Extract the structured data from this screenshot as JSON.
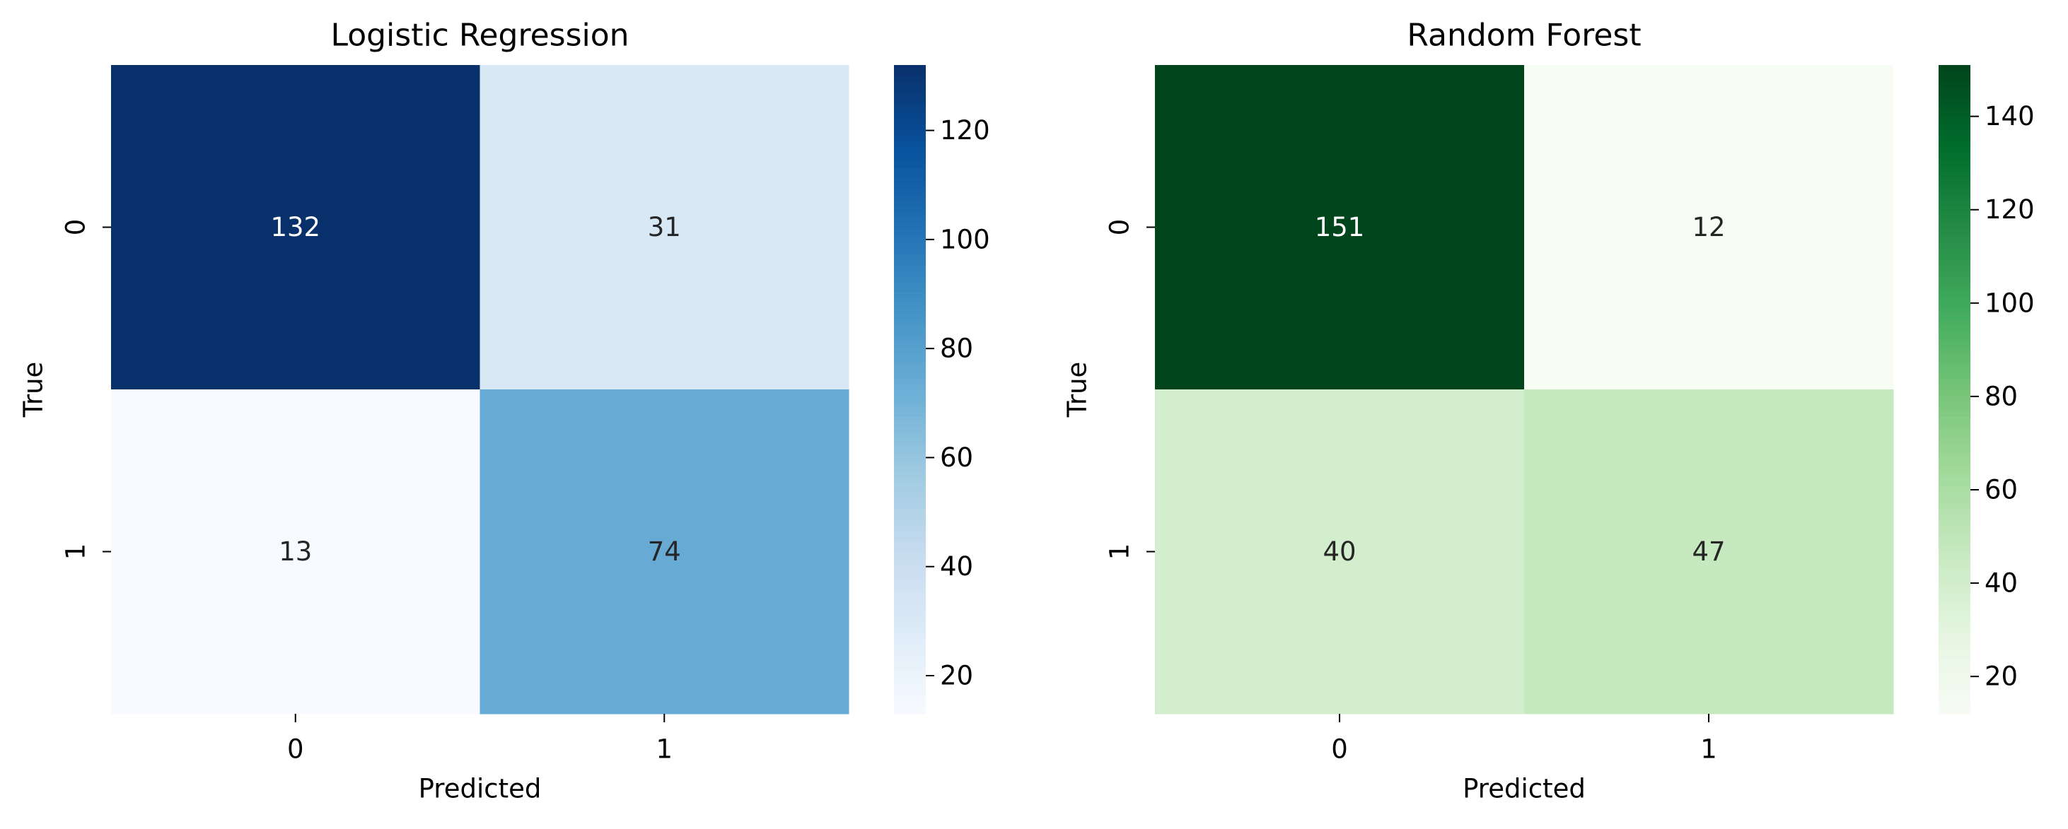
{
  "chart_data": [
    {
      "type": "heatmap",
      "title": "Logistic Regression",
      "xlabel": "Predicted",
      "ylabel": "True",
      "x_categories": [
        "0",
        "1"
      ],
      "y_categories": [
        "0",
        "1"
      ],
      "values": [
        [
          132,
          31
        ],
        [
          13,
          74
        ]
      ],
      "colormap": "Blues",
      "color_range": [
        13,
        132
      ],
      "colorbar_ticks": [
        20,
        40,
        60,
        80,
        100,
        120
      ],
      "colorbar_range": [
        13,
        132
      ]
    },
    {
      "type": "heatmap",
      "title": "Random Forest",
      "xlabel": "Predicted",
      "ylabel": "True",
      "x_categories": [
        "0",
        "1"
      ],
      "y_categories": [
        "0",
        "1"
      ],
      "values": [
        [
          151,
          12
        ],
        [
          40,
          47
        ]
      ],
      "colormap": "Greens",
      "color_range": [
        12,
        151
      ],
      "colorbar_ticks": [
        20,
        40,
        60,
        80,
        100,
        120,
        140
      ],
      "colorbar_range": [
        12,
        151
      ]
    }
  ],
  "colors": {
    "Blues": [
      "#f7fbff",
      "#deebf7",
      "#c6dbef",
      "#9ecae1",
      "#6baed6",
      "#4292c6",
      "#2171b5",
      "#08519c",
      "#08306b"
    ],
    "Greens": [
      "#f7fcf5",
      "#e5f5e0",
      "#c7e9c0",
      "#a1d99b",
      "#74c476",
      "#41ab5d",
      "#238b45",
      "#006d2c",
      "#00441b"
    ],
    "text_dark": "#262626",
    "text_light": "#ffffff"
  }
}
